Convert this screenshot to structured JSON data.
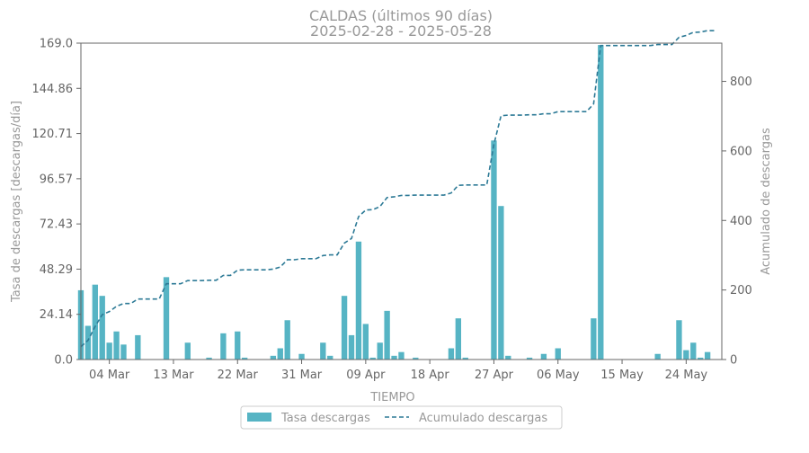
{
  "chart_data": {
    "type": "bar",
    "title": "CALDAS (últimos 90 días)",
    "subtitle": "2025-02-28  -  2025-05-28",
    "xlabel": "TIEMPO",
    "ylabel": "Tasa de descargas [descargas/día]",
    "y2label": "Acumulado de descargas",
    "ylim": [
      0,
      169.0
    ],
    "y2lim": [
      0,
      910
    ],
    "yticks": [
      "0.0",
      "24.14",
      "48.29",
      "72.43",
      "96.57",
      "120.71",
      "144.86",
      "169.0"
    ],
    "y2ticks": [
      "0",
      "200",
      "400",
      "600",
      "800"
    ],
    "xticks": [
      "04 Mar",
      "13 Mar",
      "22 Mar",
      "31 Mar",
      "09 Apr",
      "18 Apr",
      "27 Apr",
      "06 May",
      "15 May",
      "24 May"
    ],
    "x": [
      "2025-02-28",
      "2025-03-01",
      "2025-03-02",
      "2025-03-03",
      "2025-03-04",
      "2025-03-05",
      "2025-03-06",
      "2025-03-07",
      "2025-03-08",
      "2025-03-09",
      "2025-03-10",
      "2025-03-11",
      "2025-03-12",
      "2025-03-13",
      "2025-03-14",
      "2025-03-15",
      "2025-03-16",
      "2025-03-17",
      "2025-03-18",
      "2025-03-19",
      "2025-03-20",
      "2025-03-21",
      "2025-03-22",
      "2025-03-23",
      "2025-03-24",
      "2025-03-25",
      "2025-03-26",
      "2025-03-27",
      "2025-03-28",
      "2025-03-29",
      "2025-03-30",
      "2025-03-31",
      "2025-04-01",
      "2025-04-02",
      "2025-04-03",
      "2025-04-04",
      "2025-04-05",
      "2025-04-06",
      "2025-04-07",
      "2025-04-08",
      "2025-04-09",
      "2025-04-10",
      "2025-04-11",
      "2025-04-12",
      "2025-04-13",
      "2025-04-14",
      "2025-04-15",
      "2025-04-16",
      "2025-04-17",
      "2025-04-18",
      "2025-04-19",
      "2025-04-20",
      "2025-04-21",
      "2025-04-22",
      "2025-04-23",
      "2025-04-24",
      "2025-04-25",
      "2025-04-26",
      "2025-04-27",
      "2025-04-28",
      "2025-04-29",
      "2025-04-30",
      "2025-05-01",
      "2025-05-02",
      "2025-05-03",
      "2025-05-04",
      "2025-05-05",
      "2025-05-06",
      "2025-05-07",
      "2025-05-08",
      "2025-05-09",
      "2025-05-10",
      "2025-05-11",
      "2025-05-12",
      "2025-05-13",
      "2025-05-14",
      "2025-05-15",
      "2025-05-16",
      "2025-05-17",
      "2025-05-18",
      "2025-05-19",
      "2025-05-20",
      "2025-05-21",
      "2025-05-22",
      "2025-05-23",
      "2025-05-24",
      "2025-05-25",
      "2025-05-26",
      "2025-05-27",
      "2025-05-28"
    ],
    "series": [
      {
        "name": "Tasa descargas",
        "axis": "left",
        "kind": "bar",
        "color": "#56b4c4",
        "values": [
          37,
          18,
          40,
          34,
          9,
          15,
          8,
          0,
          13,
          0,
          0,
          0,
          44,
          0,
          0,
          9,
          0,
          0,
          1,
          0,
          14,
          0,
          15,
          1,
          0,
          0,
          0,
          2,
          6,
          21,
          0,
          3,
          0,
          0,
          9,
          2,
          0,
          34,
          13,
          63,
          19,
          1,
          9,
          26,
          2,
          4,
          0,
          1,
          0,
          0,
          0,
          0,
          6,
          22,
          1,
          0,
          0,
          0,
          117,
          82,
          2,
          0,
          0,
          1,
          0,
          3,
          0,
          6,
          0,
          0,
          0,
          0,
          22,
          168,
          0,
          0,
          0,
          0,
          0,
          0,
          0,
          3,
          0,
          0,
          21,
          5,
          9,
          1,
          4,
          0
        ]
      },
      {
        "name": "Acumulado descargas",
        "axis": "right",
        "kind": "line",
        "color": "#2d7a96",
        "values": [
          37,
          55,
          95,
          129,
          138,
          153,
          161,
          161,
          174,
          174,
          174,
          174,
          218,
          218,
          218,
          227,
          227,
          227,
          228,
          228,
          242,
          242,
          257,
          258,
          258,
          258,
          258,
          260,
          266,
          287,
          287,
          290,
          290,
          290,
          299,
          301,
          301,
          335,
          348,
          411,
          430,
          431,
          440,
          466,
          468,
          472,
          472,
          473,
          473,
          473,
          473,
          473,
          479,
          501,
          502,
          502,
          502,
          502,
          619,
          701,
          703,
          703,
          703,
          704,
          704,
          707,
          707,
          713,
          713,
          713,
          713,
          713,
          735,
          903,
          903,
          903,
          903,
          903,
          903,
          903,
          903,
          906,
          906,
          906,
          927,
          932,
          941,
          942,
          946,
          946
        ]
      }
    ],
    "legend": {
      "position": "bottom-center",
      "items": [
        "Tasa descargas",
        "Acumulado descargas"
      ]
    },
    "grid": false
  }
}
